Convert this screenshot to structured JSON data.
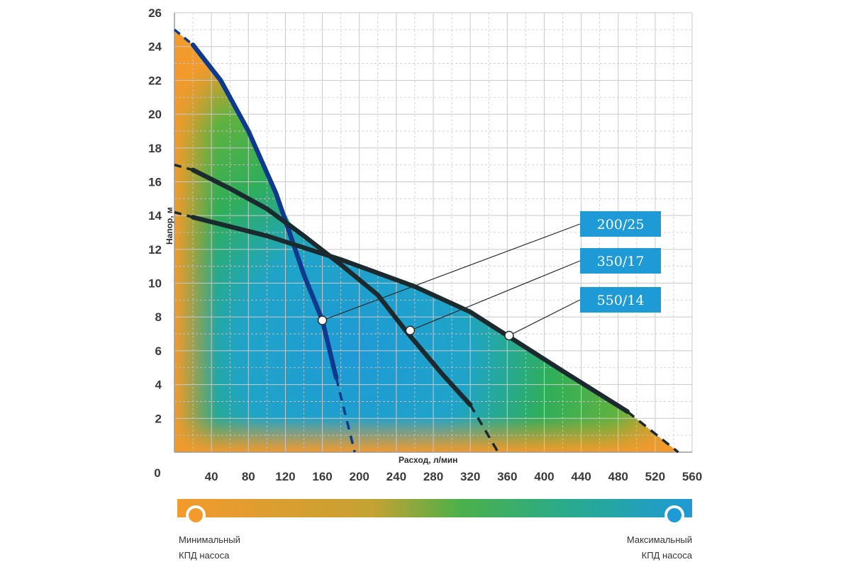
{
  "chart_data": {
    "type": "line",
    "title": "",
    "xlabel": "Расход, л/мин",
    "ylabel": "Напор, м",
    "xlim": [
      0,
      560
    ],
    "ylim": [
      0,
      26
    ],
    "grid": true,
    "x_ticks": [
      "0",
      "40",
      "80",
      "120",
      "160",
      "200",
      "240",
      "280",
      "320",
      "360",
      "400",
      "440",
      "480",
      "520",
      "560"
    ],
    "y_ticks": [
      "2",
      "4",
      "6",
      "8",
      "10",
      "12",
      "14",
      "16",
      "18",
      "20",
      "22",
      "24",
      "26"
    ],
    "series": [
      {
        "name": "200/25",
        "color": "#0d3a8c",
        "solid": [
          [
            20,
            24.1
          ],
          [
            50,
            22.0
          ],
          [
            80,
            19.0
          ],
          [
            110,
            15.3
          ],
          [
            140,
            10.5
          ],
          [
            160,
            7.8
          ],
          [
            175,
            4.4
          ]
        ],
        "dashed": [
          [
            0,
            25.0
          ],
          [
            20,
            24.1
          ]
        ],
        "dashed_end": [
          [
            175,
            4.4
          ],
          [
            195,
            0
          ]
        ],
        "marker": [
          160,
          7.8
        ]
      },
      {
        "name": "350/17",
        "color": "#1b2a2e",
        "solid": [
          [
            20,
            16.7
          ],
          [
            60,
            15.6
          ],
          [
            100,
            14.4
          ],
          [
            140,
            12.8
          ],
          [
            180,
            11.1
          ],
          [
            220,
            9.3
          ],
          [
            250,
            7.2
          ],
          [
            290,
            4.6
          ],
          [
            320,
            2.8
          ]
        ],
        "dashed": [
          [
            0,
            17.0
          ],
          [
            20,
            16.7
          ]
        ],
        "dashed_end": [
          [
            320,
            2.8
          ],
          [
            350,
            0
          ]
        ],
        "marker": [
          255,
          7.2
        ]
      },
      {
        "name": "550/14",
        "color": "#1b2a2e",
        "solid": [
          [
            20,
            13.9
          ],
          [
            100,
            12.8
          ],
          [
            180,
            11.4
          ],
          [
            260,
            9.8
          ],
          [
            320,
            8.3
          ],
          [
            360,
            6.9
          ],
          [
            420,
            4.8
          ],
          [
            490,
            2.4
          ]
        ],
        "dashed": [
          [
            0,
            14.2
          ],
          [
            20,
            13.9
          ]
        ],
        "dashed_end": [
          [
            490,
            2.4
          ],
          [
            545,
            0
          ]
        ],
        "marker": [
          362,
          6.9
        ]
      }
    ],
    "colorbar": {
      "min_label": "Минимальный\nКПД насоса",
      "max_label": "Максимальный\nКПД насоса",
      "min_color": "#f39a2c",
      "max_color": "#1e9ad6"
    }
  }
}
